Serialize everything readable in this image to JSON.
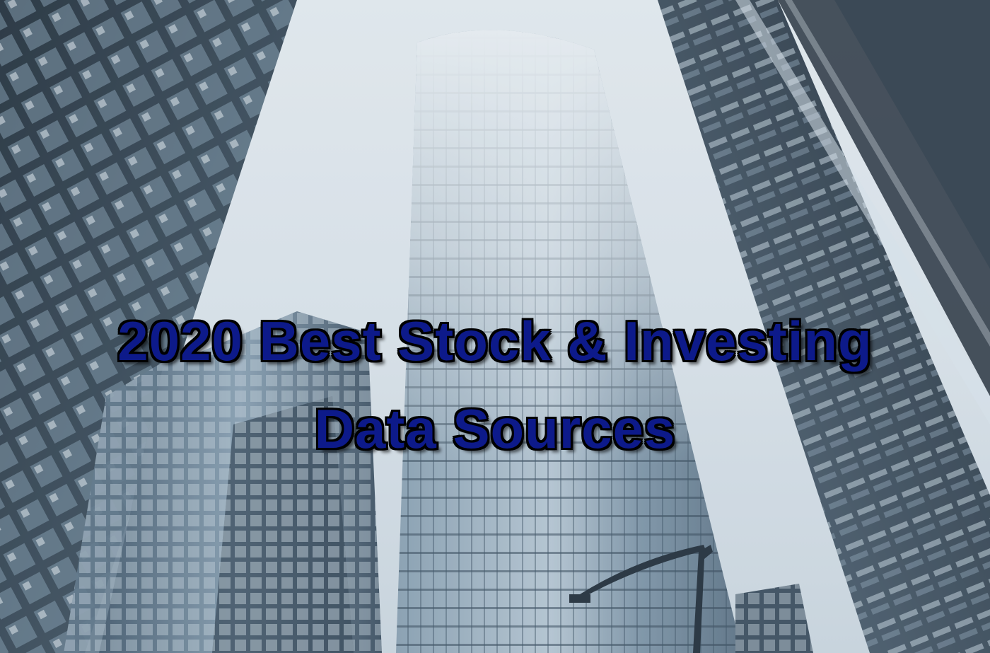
{
  "hero": {
    "title_line_1": "2020 Best Stock & Investing",
    "title_line_2": "Data Sources"
  },
  "palette": {
    "sky": "#dfe6ec",
    "fog": "#eef2f5",
    "glass_light": "#a9bccb",
    "glass_mid": "#6f8597",
    "glass_dark": "#2b3947",
    "title_fill": "#0d1a8a",
    "title_outline": "#000000"
  },
  "image": {
    "subject": "skyscrapers-photo"
  }
}
